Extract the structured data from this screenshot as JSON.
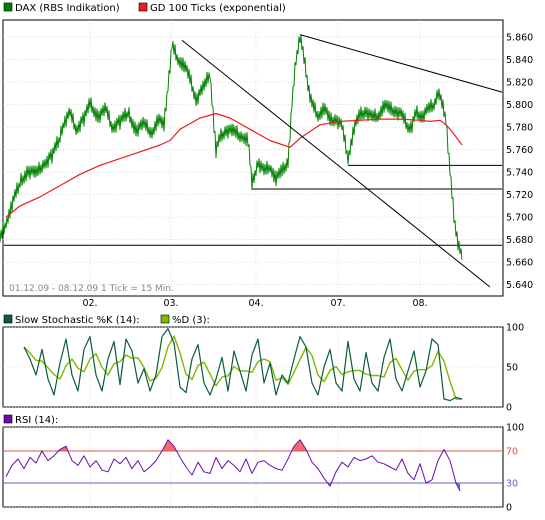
{
  "colors": {
    "price": "#008000",
    "gd": "#ee1c1c",
    "stoch_k": "#0a5c3a",
    "stoch_d": "#7fb800",
    "rsi": "#6a0dad",
    "rsi_over": "#f26b6b",
    "rsi_under": "#7070ee",
    "level70": "#e05050",
    "level30": "#6060d0",
    "grid": "#c8c8c8",
    "trend": "#000000"
  },
  "chart_data": [
    {
      "type": "line",
      "legend": [
        {
          "name": "DAX (RBS Indikation)",
          "color": "#008000"
        },
        {
          "name": "GD 100 Ticks (exponential)",
          "color": "#ee1c1c"
        }
      ],
      "period_label": "01.12.09 - 08.12.09   1 Tick = 15 Min.",
      "x_ticks": [
        "02.",
        "03.",
        "04.",
        "07.",
        "08."
      ],
      "y_ticks": [
        "5.640",
        "5.660",
        "5.680",
        "5.700",
        "5.720",
        "5.740",
        "5.760",
        "5.780",
        "5.800",
        "5.820",
        "5.840",
        "5.860"
      ],
      "ylim": [
        5630,
        5875
      ],
      "grid": true,
      "series": [
        {
          "name": "DAX (RBS Indikation)",
          "x": [
            0,
            6,
            12,
            20,
            28,
            36,
            44,
            52,
            60,
            64,
            70,
            76,
            84,
            90,
            98,
            106,
            112,
            120,
            128,
            136,
            144,
            152,
            158,
            164,
            168,
            172,
            178,
            184,
            190,
            196,
            204,
            210,
            216,
            220,
            226,
            234,
            242,
            248,
            252,
            258,
            264,
            270,
            276,
            282,
            288,
            292,
            296,
            300,
            304,
            308,
            312,
            318,
            324,
            330,
            336,
            342,
            348,
            354,
            360,
            366,
            372,
            378,
            384,
            390,
            396,
            402,
            408,
            412,
            416,
            422,
            428,
            434,
            438,
            442,
            446,
            450,
            454,
            458,
            462
          ],
          "values": [
            5680,
            5695,
            5712,
            5730,
            5742,
            5738,
            5748,
            5755,
            5770,
            5785,
            5792,
            5778,
            5788,
            5800,
            5790,
            5795,
            5780,
            5785,
            5792,
            5778,
            5782,
            5775,
            5788,
            5780,
            5818,
            5852,
            5840,
            5836,
            5822,
            5805,
            5815,
            5828,
            5760,
            5770,
            5778,
            5775,
            5772,
            5770,
            5728,
            5750,
            5740,
            5745,
            5735,
            5740,
            5750,
            5800,
            5840,
            5862,
            5840,
            5818,
            5800,
            5790,
            5798,
            5785,
            5788,
            5780,
            5752,
            5780,
            5790,
            5795,
            5788,
            5790,
            5800,
            5795,
            5795,
            5790,
            5780,
            5782,
            5792,
            5790,
            5795,
            5800,
            5812,
            5800,
            5788,
            5740,
            5700,
            5678,
            5662
          ]
        },
        {
          "name": "GD 100 Ticks (exponential)",
          "x": [
            6,
            20,
            40,
            60,
            80,
            100,
            120,
            140,
            160,
            170,
            180,
            200,
            216,
            230,
            250,
            270,
            290,
            300,
            320,
            340,
            360,
            380,
            400,
            420,
            430,
            440,
            446,
            452,
            462
          ],
          "values": [
            5700,
            5710,
            5718,
            5728,
            5738,
            5746,
            5752,
            5758,
            5764,
            5768,
            5778,
            5788,
            5792,
            5788,
            5778,
            5768,
            5762,
            5770,
            5782,
            5785,
            5786,
            5787,
            5787,
            5786,
            5785,
            5786,
            5782,
            5776,
            5764
          ]
        }
      ],
      "trendlines": [
        {
          "x1": 182,
          "y1": 5857,
          "x2": 490,
          "y2": 5638
        },
        {
          "x1": 300,
          "y1": 5862,
          "x2": 502,
          "y2": 5811
        }
      ],
      "levels": [
        {
          "value": 5746,
          "x_from": 348,
          "x_to": 502
        },
        {
          "value": 5725,
          "x_from": 252,
          "x_to": 502
        },
        {
          "value": 5675,
          "x_from": 4,
          "x_to": 502
        }
      ]
    },
    {
      "type": "line",
      "legend": [
        {
          "name": "Slow Stochastic %K (14):",
          "color": "#0a5c3a"
        },
        {
          "name": "%D (3):",
          "color": "#7fb800"
        }
      ],
      "y_ticks": [
        "0",
        "50",
        "100"
      ],
      "ylim": [
        0,
        100
      ],
      "grid": true,
      "series": [
        {
          "name": "Slow Stochastic %K (14):",
          "x": [
            24,
            30,
            36,
            42,
            48,
            54,
            60,
            66,
            72,
            78,
            84,
            90,
            96,
            102,
            108,
            114,
            120,
            126,
            132,
            138,
            144,
            150,
            156,
            162,
            168,
            174,
            180,
            186,
            192,
            198,
            204,
            210,
            216,
            222,
            228,
            234,
            240,
            246,
            252,
            258,
            264,
            270,
            276,
            282,
            288,
            294,
            300,
            306,
            312,
            318,
            324,
            330,
            336,
            342,
            348,
            354,
            360,
            366,
            372,
            378,
            384,
            390,
            396,
            402,
            408,
            414,
            420,
            426,
            432,
            438,
            444,
            450,
            456,
            462
          ],
          "values": [
            75,
            60,
            40,
            72,
            35,
            15,
            55,
            85,
            40,
            20,
            72,
            88,
            40,
            20,
            60,
            82,
            28,
            85,
            70,
            30,
            48,
            20,
            40,
            88,
            98,
            80,
            25,
            18,
            60,
            78,
            30,
            15,
            35,
            62,
            20,
            70,
            45,
            20,
            65,
            85,
            30,
            55,
            15,
            40,
            30,
            60,
            88,
            75,
            30,
            15,
            50,
            72,
            30,
            20,
            82,
            35,
            20,
            68,
            30,
            20,
            62,
            85,
            35,
            20,
            45,
            70,
            25,
            45,
            85,
            78,
            10,
            8,
            12,
            10
          ]
        }
      ]
    },
    {
      "type": "area",
      "legend": [
        {
          "name": "RSI (14):",
          "color": "#6a0dad"
        }
      ],
      "y_ticks": [
        "0",
        "30",
        "70",
        "100"
      ],
      "levels": [
        70,
        30
      ],
      "ylim": [
        0,
        100
      ],
      "grid": true,
      "series": [
        {
          "name": "RSI (14):",
          "x": [
            6,
            12,
            18,
            24,
            30,
            36,
            42,
            48,
            54,
            60,
            66,
            72,
            78,
            84,
            90,
            96,
            102,
            108,
            114,
            120,
            126,
            132,
            138,
            144,
            150,
            156,
            162,
            168,
            174,
            180,
            186,
            192,
            198,
            204,
            210,
            216,
            222,
            228,
            234,
            240,
            246,
            252,
            258,
            264,
            270,
            276,
            282,
            288,
            294,
            300,
            306,
            312,
            318,
            324,
            330,
            336,
            342,
            348,
            354,
            360,
            366,
            372,
            378,
            384,
            390,
            396,
            402,
            408,
            414,
            420,
            426,
            432,
            438,
            444,
            450,
            456,
            460
          ],
          "values": [
            38,
            52,
            60,
            48,
            62,
            55,
            70,
            58,
            64,
            72,
            76,
            58,
            52,
            64,
            50,
            58,
            46,
            44,
            60,
            54,
            62,
            48,
            58,
            44,
            50,
            58,
            70,
            84,
            76,
            62,
            50,
            40,
            56,
            44,
            42,
            62,
            48,
            58,
            52,
            44,
            60,
            42,
            56,
            58,
            52,
            48,
            46,
            60,
            76,
            84,
            72,
            56,
            48,
            36,
            26,
            44,
            56,
            50,
            62,
            58,
            60,
            64,
            56,
            54,
            50,
            46,
            60,
            42,
            34,
            54,
            30,
            34,
            58,
            72,
            58,
            30,
            20
          ]
        }
      ]
    }
  ]
}
